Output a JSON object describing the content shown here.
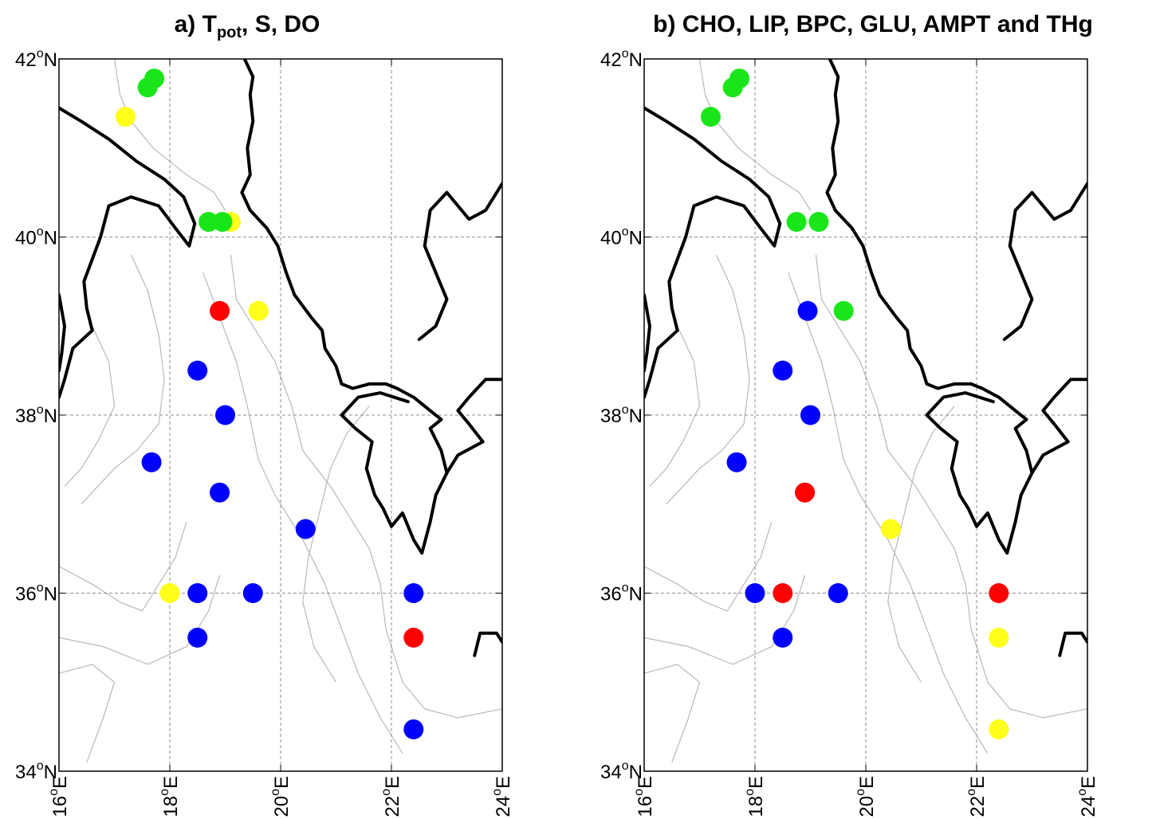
{
  "panels": [
    {
      "id": "a",
      "title_main": "a) T",
      "title_sub": "pot",
      "title_rest": ", S, DO",
      "stations": [
        {
          "lon": 17.72,
          "lat": 41.78,
          "color": "green"
        },
        {
          "lon": 17.6,
          "lat": 41.68,
          "color": "green"
        },
        {
          "lon": 17.2,
          "lat": 41.35,
          "color": "yellow"
        },
        {
          "lon": 19.1,
          "lat": 40.17,
          "color": "yellow"
        },
        {
          "lon": 18.7,
          "lat": 40.17,
          "color": "green"
        },
        {
          "lon": 18.95,
          "lat": 40.17,
          "color": "green"
        },
        {
          "lon": 18.9,
          "lat": 39.17,
          "color": "red"
        },
        {
          "lon": 19.6,
          "lat": 39.17,
          "color": "yellow"
        },
        {
          "lon": 18.5,
          "lat": 38.5,
          "color": "blue"
        },
        {
          "lon": 19.0,
          "lat": 38.0,
          "color": "blue"
        },
        {
          "lon": 17.67,
          "lat": 37.47,
          "color": "blue"
        },
        {
          "lon": 18.9,
          "lat": 37.13,
          "color": "blue"
        },
        {
          "lon": 20.45,
          "lat": 36.72,
          "color": "blue"
        },
        {
          "lon": 18.0,
          "lat": 36.0,
          "color": "yellow"
        },
        {
          "lon": 18.5,
          "lat": 36.0,
          "color": "blue"
        },
        {
          "lon": 19.5,
          "lat": 36.0,
          "color": "blue"
        },
        {
          "lon": 22.4,
          "lat": 36.0,
          "color": "blue"
        },
        {
          "lon": 18.5,
          "lat": 35.5,
          "color": "blue"
        },
        {
          "lon": 22.4,
          "lat": 35.5,
          "color": "red"
        },
        {
          "lon": 22.4,
          "lat": 34.47,
          "color": "blue"
        }
      ]
    },
    {
      "id": "b",
      "title_main": "b) CHO, LIP, BPC, GLU, AMPT and THg",
      "title_sub": "",
      "title_rest": "",
      "stations": [
        {
          "lon": 17.72,
          "lat": 41.78,
          "color": "green"
        },
        {
          "lon": 17.6,
          "lat": 41.68,
          "color": "green"
        },
        {
          "lon": 17.2,
          "lat": 41.35,
          "color": "green"
        },
        {
          "lon": 18.75,
          "lat": 40.17,
          "color": "green"
        },
        {
          "lon": 19.15,
          "lat": 40.17,
          "color": "green"
        },
        {
          "lon": 18.95,
          "lat": 39.17,
          "color": "blue"
        },
        {
          "lon": 19.6,
          "lat": 39.17,
          "color": "green"
        },
        {
          "lon": 18.5,
          "lat": 38.5,
          "color": "blue"
        },
        {
          "lon": 19.0,
          "lat": 38.0,
          "color": "blue"
        },
        {
          "lon": 17.67,
          "lat": 37.47,
          "color": "blue"
        },
        {
          "lon": 18.9,
          "lat": 37.13,
          "color": "red"
        },
        {
          "lon": 20.45,
          "lat": 36.72,
          "color": "yellow"
        },
        {
          "lon": 18.0,
          "lat": 36.0,
          "color": "blue"
        },
        {
          "lon": 18.5,
          "lat": 36.0,
          "color": "red"
        },
        {
          "lon": 19.5,
          "lat": 36.0,
          "color": "blue"
        },
        {
          "lon": 22.4,
          "lat": 36.0,
          "color": "red"
        },
        {
          "lon": 18.5,
          "lat": 35.5,
          "color": "blue"
        },
        {
          "lon": 22.4,
          "lat": 35.5,
          "color": "yellow"
        },
        {
          "lon": 22.4,
          "lat": 34.47,
          "color": "yellow"
        }
      ]
    }
  ],
  "map": {
    "lon_range": [
      16,
      24
    ],
    "lat_range": [
      34,
      42
    ],
    "lat_ticks": [
      {
        "value": 34,
        "label": "34",
        "suffix": "N"
      },
      {
        "value": 36,
        "label": "36",
        "suffix": "N"
      },
      {
        "value": 38,
        "label": "38",
        "suffix": "N"
      },
      {
        "value": 40,
        "label": "40",
        "suffix": "N"
      },
      {
        "value": 42,
        "label": "42",
        "suffix": "N"
      }
    ],
    "lon_ticks": [
      {
        "value": 16,
        "label": "16",
        "suffix": "E"
      },
      {
        "value": 18,
        "label": "18",
        "suffix": "E"
      },
      {
        "value": 20,
        "label": "20",
        "suffix": "E"
      },
      {
        "value": 22,
        "label": "22",
        "suffix": "E"
      },
      {
        "value": 24,
        "label": "24",
        "suffix": "E"
      }
    ],
    "degree_symbol": "o",
    "grid": true,
    "colors": {
      "green": "#19e619",
      "yellow": "#ffff19",
      "red": "#ff0000",
      "blue": "#0000ff",
      "coast": "#000000",
      "bathy": "#b8b8b8",
      "grid": "#8c8c8c"
    }
  }
}
